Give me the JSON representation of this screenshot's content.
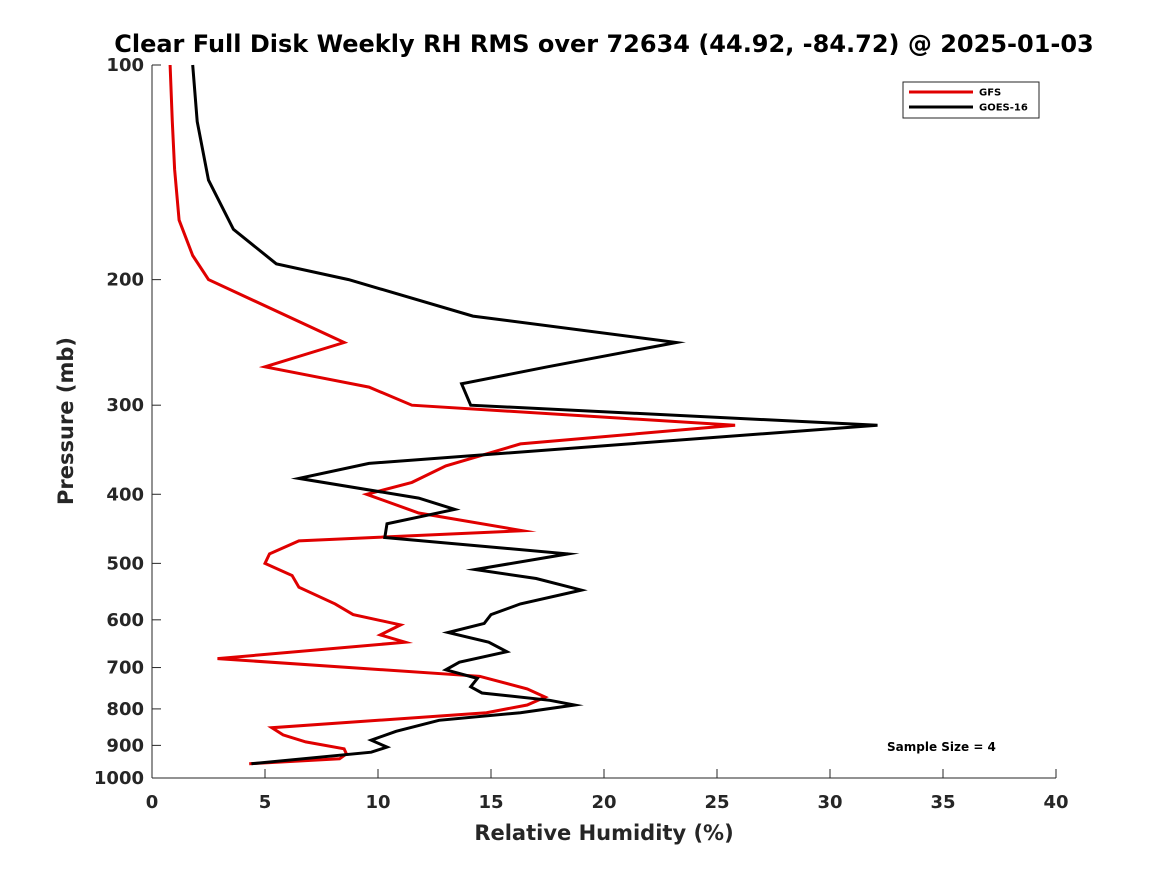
{
  "chart_data": {
    "type": "line",
    "title": "Clear Full Disk Weekly RH RMS over 72634 (44.92, -84.72) @ 2025-01-03",
    "xlabel": "Relative Humidity (%)",
    "ylabel": "Pressure (mb)",
    "xlim": [
      0,
      40
    ],
    "ylim": [
      100,
      1000
    ],
    "yscale": "log",
    "y_reversed": true,
    "x_ticks": [
      0,
      5,
      10,
      15,
      20,
      25,
      30,
      35,
      40
    ],
    "x_tick_labels": [
      "0",
      "5",
      "10",
      "15",
      "20",
      "25",
      "30",
      "35",
      "40"
    ],
    "y_ticks": [
      100,
      200,
      300,
      400,
      500,
      600,
      700,
      800,
      900,
      1000
    ],
    "y_tick_labels": [
      "100",
      "200",
      "300",
      "400",
      "500",
      "600",
      "700",
      "800",
      "900",
      "1000"
    ],
    "grid": false,
    "legend_position": "top-right",
    "annotation": "Sample Size = 4",
    "series": [
      {
        "name": "GFS",
        "color": "#e00000",
        "x": [
          0.8,
          0.9,
          1.0,
          1.2,
          1.8,
          2.5,
          8.5,
          5.0,
          9.6,
          11.5,
          25.8,
          16.3,
          13.0,
          11.5,
          9.5,
          11.8,
          16.4,
          6.5,
          5.2,
          5.0,
          6.2,
          6.5,
          8.1,
          8.9,
          11.0,
          10.1,
          11.2,
          2.9,
          14.5,
          16.6,
          17.4,
          16.6,
          14.8,
          5.3,
          5.8,
          6.8,
          8.5,
          8.6,
          8.3,
          4.3
        ],
        "y": [
          100,
          120,
          140,
          165,
          185,
          200,
          245,
          265,
          283,
          300,
          320,
          340,
          365,
          385,
          400,
          425,
          450,
          465,
          485,
          500,
          520,
          540,
          570,
          590,
          610,
          630,
          645,
          680,
          720,
          750,
          770,
          790,
          810,
          850,
          870,
          890,
          910,
          925,
          940,
          955
        ]
      },
      {
        "name": "GOES-16",
        "color": "#000000",
        "x": [
          1.8,
          2.0,
          2.5,
          3.6,
          5.5,
          8.7,
          14.2,
          23.2,
          17.5,
          13.7,
          14.1,
          32.1,
          9.6,
          6.5,
          11.8,
          13.4,
          10.4,
          10.3,
          18.4,
          14.3,
          17.0,
          19.0,
          16.3,
          15.0,
          14.7,
          13.1,
          14.9,
          15.7,
          13.6,
          13.0,
          14.4,
          14.1,
          14.6,
          17.6,
          18.7,
          16.3,
          12.7,
          10.8,
          9.7,
          10.4,
          9.7,
          4.4
        ],
        "y": [
          100,
          120,
          145,
          170,
          190,
          200,
          225,
          245,
          265,
          280,
          300,
          320,
          362,
          380,
          405,
          420,
          440,
          460,
          485,
          510,
          525,
          545,
          570,
          590,
          607,
          625,
          645,
          665,
          688,
          705,
          725,
          745,
          760,
          778,
          790,
          810,
          830,
          860,
          885,
          905,
          920,
          955
        ]
      }
    ]
  }
}
